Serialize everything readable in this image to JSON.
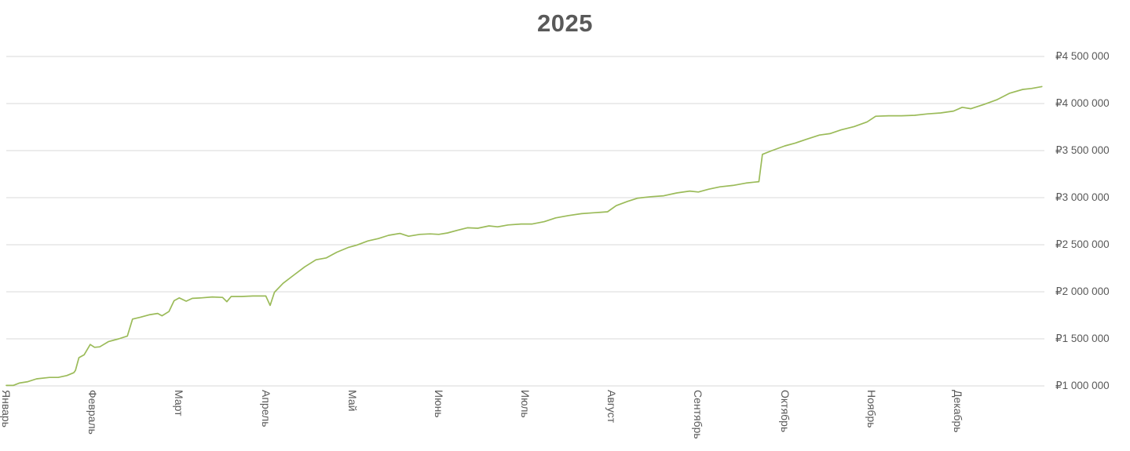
{
  "colors": {
    "line": "#9bbb59",
    "grid": "#d9d9d9",
    "axis_text": "#595959",
    "title_text": "#595959",
    "background": "#ffffff"
  },
  "chart_data": {
    "type": "line",
    "title": "2025",
    "xlabel": "",
    "ylabel": "",
    "legend": "none",
    "grid": "horizontal",
    "y_axis_side": "right",
    "currency_prefix": "₽",
    "y_min": 1000000,
    "y_max": 4500000,
    "y_step": 500000,
    "y_ticks": [
      {
        "value": 4500000,
        "label": "₽4 500 000"
      },
      {
        "value": 4000000,
        "label": "₽4 000 000"
      },
      {
        "value": 3500000,
        "label": "₽3 500 000"
      },
      {
        "value": 3000000,
        "label": "₽3 000 000"
      },
      {
        "value": 2500000,
        "label": "₽2 500 000"
      },
      {
        "value": 2000000,
        "label": "₽2 000 000"
      },
      {
        "value": 1500000,
        "label": "₽1 500 000"
      },
      {
        "value": 1000000,
        "label": "₽1 000 000"
      }
    ],
    "x_categories": [
      "Январь",
      "Февраль",
      "Март",
      "Апрель",
      "Май",
      "Июнь",
      "Июль",
      "Август",
      "Сентябрь",
      "Октябрь",
      "Ноябрь",
      "Декабрь"
    ],
    "series": [
      {
        "name": "2025",
        "points": [
          [
            0.0,
            1005000
          ],
          [
            0.08,
            1005000
          ],
          [
            0.15,
            1030000
          ],
          [
            0.25,
            1045000
          ],
          [
            0.35,
            1075000
          ],
          [
            0.5,
            1090000
          ],
          [
            0.6,
            1090000
          ],
          [
            0.7,
            1110000
          ],
          [
            0.78,
            1140000
          ],
          [
            0.8,
            1165000
          ],
          [
            0.84,
            1300000
          ],
          [
            0.9,
            1330000
          ],
          [
            0.97,
            1440000
          ],
          [
            1.02,
            1410000
          ],
          [
            1.08,
            1415000
          ],
          [
            1.18,
            1470000
          ],
          [
            1.3,
            1500000
          ],
          [
            1.4,
            1530000
          ],
          [
            1.46,
            1710000
          ],
          [
            1.55,
            1730000
          ],
          [
            1.65,
            1755000
          ],
          [
            1.75,
            1770000
          ],
          [
            1.8,
            1745000
          ],
          [
            1.88,
            1790000
          ],
          [
            1.94,
            1905000
          ],
          [
            2.0,
            1935000
          ],
          [
            2.08,
            1900000
          ],
          [
            2.15,
            1930000
          ],
          [
            2.25,
            1935000
          ],
          [
            2.38,
            1945000
          ],
          [
            2.5,
            1940000
          ],
          [
            2.55,
            1895000
          ],
          [
            2.6,
            1950000
          ],
          [
            2.72,
            1950000
          ],
          [
            2.85,
            1955000
          ],
          [
            3.0,
            1955000
          ],
          [
            3.05,
            1855000
          ],
          [
            3.1,
            1995000
          ],
          [
            3.2,
            2090000
          ],
          [
            3.32,
            2175000
          ],
          [
            3.45,
            2265000
          ],
          [
            3.58,
            2340000
          ],
          [
            3.7,
            2360000
          ],
          [
            3.82,
            2420000
          ],
          [
            3.95,
            2470000
          ],
          [
            4.05,
            2495000
          ],
          [
            4.18,
            2540000
          ],
          [
            4.3,
            2565000
          ],
          [
            4.42,
            2600000
          ],
          [
            4.55,
            2620000
          ],
          [
            4.65,
            2590000
          ],
          [
            4.78,
            2610000
          ],
          [
            4.9,
            2615000
          ],
          [
            5.0,
            2610000
          ],
          [
            5.1,
            2625000
          ],
          [
            5.22,
            2655000
          ],
          [
            5.33,
            2680000
          ],
          [
            5.45,
            2675000
          ],
          [
            5.58,
            2700000
          ],
          [
            5.68,
            2690000
          ],
          [
            5.8,
            2710000
          ],
          [
            5.95,
            2720000
          ],
          [
            6.08,
            2720000
          ],
          [
            6.22,
            2745000
          ],
          [
            6.35,
            2785000
          ],
          [
            6.5,
            2810000
          ],
          [
            6.65,
            2830000
          ],
          [
            6.8,
            2840000
          ],
          [
            6.95,
            2850000
          ],
          [
            7.05,
            2915000
          ],
          [
            7.18,
            2960000
          ],
          [
            7.3,
            2995000
          ],
          [
            7.45,
            3010000
          ],
          [
            7.6,
            3020000
          ],
          [
            7.75,
            3050000
          ],
          [
            7.9,
            3070000
          ],
          [
            8.0,
            3060000
          ],
          [
            8.12,
            3090000
          ],
          [
            8.25,
            3115000
          ],
          [
            8.4,
            3130000
          ],
          [
            8.55,
            3155000
          ],
          [
            8.65,
            3165000
          ],
          [
            8.7,
            3170000
          ],
          [
            8.74,
            3460000
          ],
          [
            8.85,
            3500000
          ],
          [
            9.0,
            3550000
          ],
          [
            9.12,
            3580000
          ],
          [
            9.25,
            3620000
          ],
          [
            9.4,
            3665000
          ],
          [
            9.52,
            3680000
          ],
          [
            9.65,
            3720000
          ],
          [
            9.8,
            3755000
          ],
          [
            9.95,
            3805000
          ],
          [
            10.05,
            3865000
          ],
          [
            10.2,
            3870000
          ],
          [
            10.35,
            3870000
          ],
          [
            10.5,
            3875000
          ],
          [
            10.65,
            3890000
          ],
          [
            10.8,
            3900000
          ],
          [
            10.95,
            3920000
          ],
          [
            11.05,
            3960000
          ],
          [
            11.15,
            3945000
          ],
          [
            11.3,
            3990000
          ],
          [
            11.45,
            4040000
          ],
          [
            11.6,
            4110000
          ],
          [
            11.75,
            4150000
          ],
          [
            11.85,
            4160000
          ],
          [
            11.97,
            4180000
          ]
        ]
      }
    ]
  }
}
